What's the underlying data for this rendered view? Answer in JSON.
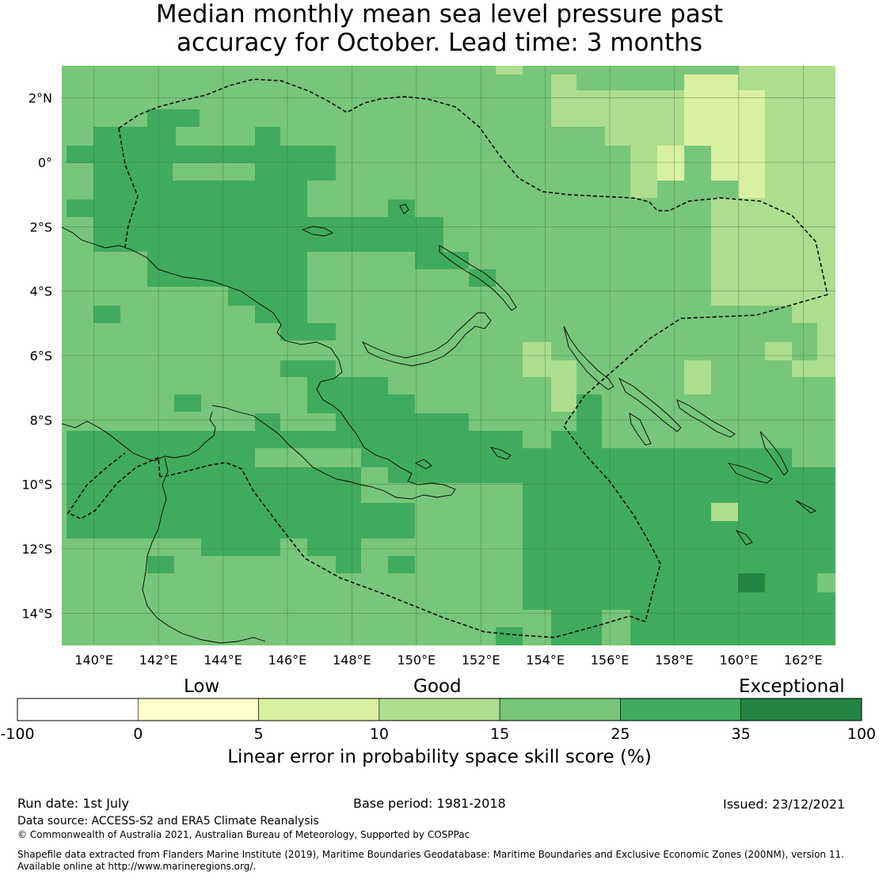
{
  "title": {
    "line1": "Median monthly mean sea level pressure past",
    "line2": "accuracy for October. Lead time: 3 months"
  },
  "map": {
    "lat_labels": [
      "2°N",
      "0°",
      "2°S",
      "4°S",
      "6°S",
      "8°S",
      "10°S",
      "12°S",
      "14°S"
    ],
    "lon_labels": [
      "140°E",
      "142°E",
      "144°E",
      "146°E",
      "148°E",
      "150°E",
      "152°E",
      "154°E",
      "156°E",
      "158°E",
      "160°E",
      "162°E"
    ],
    "extent": {
      "lon_min": 139,
      "lon_max": 163,
      "lat_min": -15,
      "lat_max": 3
    }
  },
  "legend": {
    "categories": [
      "Low",
      "Good",
      "Exceptional"
    ],
    "bins": [
      {
        "from": -100,
        "to": 0,
        "color": "#ffffff"
      },
      {
        "from": 0,
        "to": 5,
        "color": "#ffffcc"
      },
      {
        "from": 5,
        "to": 10,
        "color": "#d9f0a3"
      },
      {
        "from": 10,
        "to": 15,
        "color": "#addd8e"
      },
      {
        "from": 15,
        "to": 25,
        "color": "#78c679"
      },
      {
        "from": 25,
        "to": 35,
        "color": "#41ab5d"
      },
      {
        "from": 35,
        "to": 100,
        "color": "#238443"
      }
    ],
    "tick_labels": [
      "-100",
      "0",
      "5",
      "10",
      "15",
      "25",
      "35",
      "100"
    ],
    "axis_label": "Linear error in probability space skill score (%)"
  },
  "footer": {
    "run_date": "Run date: 1st July",
    "base_period": "Base period: 1981-2018",
    "issued": "Issued: 23/12/2021",
    "data_source": "Data source: ACCESS-S2 and ERA5 Climate Reanalysis",
    "copyright": "© Commonwealth of Australia 2021, Australian Bureau of Meteorology, Supported by COSPPac",
    "shapefile_line1": "Shapefile data extracted from Flanders Marine Institute (2019), Maritime Boundaries Geodatabase: Maritime Boundaries and Exclusive Economic Zones (200NM), version 11.",
    "shapefile_line2": "Available online at http://www.marineregions.org/."
  }
}
